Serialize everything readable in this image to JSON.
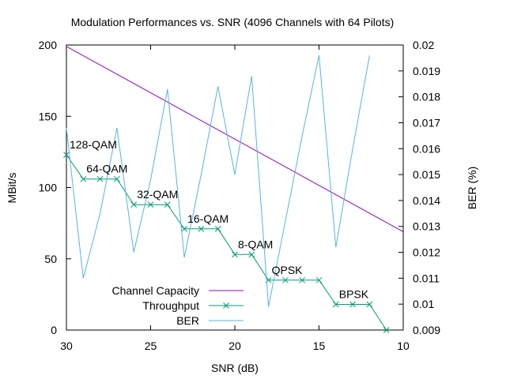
{
  "colors": {
    "capacity": "#9400d3",
    "throughput": "#009e73",
    "ber": "#56b4e9",
    "axis": "#000000",
    "background": "#ffffff"
  },
  "chart_data": {
    "type": "line",
    "title": "Modulation Performances vs. SNR (4096 Channels with 64 Pilots)",
    "xlabel": "SNR (dB)",
    "ylabel": "MBit/s",
    "y2label": "BER (%)",
    "xlim": [
      30,
      10
    ],
    "x_reversed": true,
    "ylim": [
      0,
      200
    ],
    "y2lim": [
      0.009,
      0.02
    ],
    "grid": false,
    "legend_position": "bottom-left",
    "x_ticks": [
      30,
      25,
      20,
      15,
      10
    ],
    "y_ticks": [
      0,
      50,
      100,
      150,
      200
    ],
    "y2_ticks": [
      "0.009",
      "0.01",
      "0.011",
      "0.012",
      "0.013",
      "0.014",
      "0.015",
      "0.016",
      "0.017",
      "0.018",
      "0.019",
      "0.02"
    ],
    "series": [
      {
        "name": "Channel Capacity",
        "axis": "y",
        "marker": "none",
        "x": [
          30,
          10
        ],
        "values": [
          199,
          69
        ]
      },
      {
        "name": "Throughput",
        "axis": "y",
        "marker": "x",
        "x": [
          30,
          29,
          28,
          27,
          26,
          25,
          24,
          23,
          22,
          21,
          20,
          19,
          18,
          17,
          16,
          15,
          14,
          13,
          12,
          11
        ],
        "values": [
          123,
          106,
          106,
          106,
          88,
          88,
          88,
          71,
          71,
          71,
          53,
          53,
          35,
          35,
          35,
          35,
          18,
          18,
          18,
          0
        ]
      },
      {
        "name": "BER",
        "axis": "y2",
        "marker": "none",
        "x": [
          30,
          29,
          28,
          27,
          26,
          25,
          24,
          23,
          22,
          21,
          20,
          19,
          18,
          17,
          16,
          15,
          14,
          13,
          12
        ],
        "values": [
          0.0168,
          0.011,
          0.0135,
          0.0168,
          0.012,
          0.0148,
          0.0183,
          0.0118,
          0.015,
          0.0184,
          0.015,
          0.0188,
          0.0099,
          0.0132,
          0.0165,
          0.0196,
          0.0122,
          0.016,
          0.0196
        ]
      }
    ],
    "annotations": [
      {
        "text": "128-QAM",
        "x": 30,
        "y": 123
      },
      {
        "text": "64-QAM",
        "x": 29,
        "y": 106
      },
      {
        "text": "32-QAM",
        "x": 26,
        "y": 88
      },
      {
        "text": "16-QAM",
        "x": 23,
        "y": 71
      },
      {
        "text": "8-QAM",
        "x": 20,
        "y": 53
      },
      {
        "text": "QPSK",
        "x": 18,
        "y": 35
      },
      {
        "text": "BPSK",
        "x": 14,
        "y": 18
      }
    ]
  }
}
